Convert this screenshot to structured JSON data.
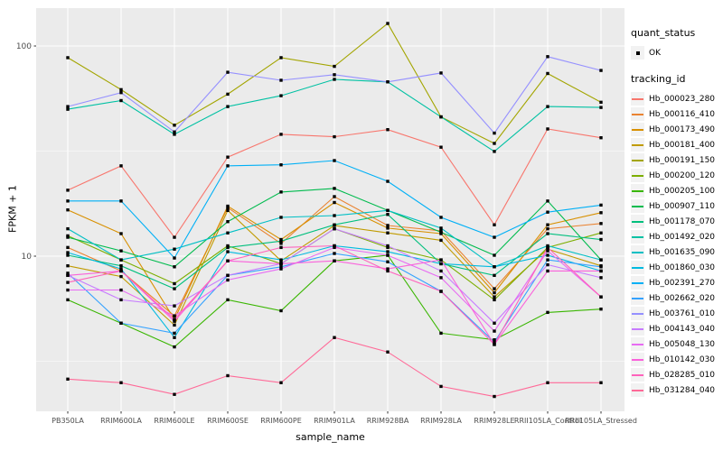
{
  "figure": {
    "background": "#FFFFFF",
    "panel_background": "#EBEBEB",
    "gridline_color": "#FFFFFF",
    "marker_color": "#000000",
    "tick_label_color": "#4D4D4D"
  },
  "legend": {
    "quant_status_title": "quant_status",
    "quant_status_items": [
      {
        "label": "OK",
        "symbol": "black-point"
      }
    ],
    "tracking_id_title": "tracking_id"
  },
  "chart_data": {
    "type": "line",
    "title": "",
    "xlabel": "sample_name",
    "ylabel": "FPKM + 1",
    "y_scale": "log10",
    "y_ticks": [
      10,
      100
    ],
    "y_minor_gridlines": [
      3.162,
      31.62
    ],
    "ylim": [
      1.85,
      155
    ],
    "grid": true,
    "legend_position": "right",
    "marker": "black-point",
    "categories": [
      "PB350LA",
      "RRIM600LA",
      "RRIM600LE",
      "RRIM600SE",
      "RRIM600PE",
      "RRIM901LA",
      "RRIM928BA",
      "RRIM928LA",
      "RRIM928LE",
      "RRII105LA_Control",
      "RRII105LA_Stressed"
    ],
    "series": [
      {
        "name": "Hb_000023_280",
        "color": "#F8766D",
        "values": [
          20.6,
          26.9,
          12.3,
          29.6,
          38.0,
          37.0,
          40.0,
          33.0,
          14.1,
          40.3,
          36.6
        ]
      },
      {
        "name": "Hb_000116_410",
        "color": "#EA8331",
        "values": [
          11.0,
          8.5,
          5.2,
          17.0,
          11.5,
          19.2,
          14.0,
          13.2,
          7.0,
          13.5,
          14.3
        ]
      },
      {
        "name": "Hb_000173_490",
        "color": "#D89000",
        "values": [
          16.6,
          12.8,
          5.0,
          17.3,
          12.0,
          18.0,
          13.6,
          12.8,
          6.7,
          14.1,
          16.1
        ]
      },
      {
        "name": "Hb_000181_400",
        "color": "#C09B00",
        "values": [
          9.0,
          8.0,
          4.7,
          16.5,
          9.5,
          14.0,
          12.9,
          11.9,
          6.4,
          10.8,
          9.0
        ]
      },
      {
        "name": "Hb_000191_150",
        "color": "#A3A500",
        "values": [
          88.0,
          62.0,
          42.0,
          59.0,
          88.0,
          80.0,
          128.0,
          46.0,
          34.4,
          74.0,
          54.0
        ]
      },
      {
        "name": "Hb_000200_120",
        "color": "#7CAE00",
        "values": [
          12.5,
          9.6,
          7.4,
          11.2,
          9.2,
          13.5,
          11.0,
          9.6,
          6.2,
          11.0,
          12.9
        ]
      },
      {
        "name": "Hb_000205_100",
        "color": "#39B600",
        "values": [
          6.2,
          4.8,
          3.7,
          6.2,
          5.5,
          9.5,
          10.1,
          4.3,
          4.0,
          5.4,
          5.6
        ]
      },
      {
        "name": "Hb_000907_110",
        "color": "#00BB4E",
        "values": [
          12.3,
          10.6,
          8.9,
          14.6,
          20.2,
          21.0,
          16.5,
          13.0,
          10.1,
          18.3,
          9.6
        ]
      },
      {
        "name": "Hb_001178_070",
        "color": "#00BF7D",
        "values": [
          10.1,
          9.0,
          7.0,
          11.0,
          11.8,
          14.1,
          15.8,
          9.2,
          8.1,
          12.8,
          12.0
        ]
      },
      {
        "name": "Hb_001492_020",
        "color": "#00C1A3",
        "values": [
          50.0,
          55.0,
          38.0,
          51.5,
          58.0,
          69.4,
          67.5,
          46.0,
          31.5,
          51.5,
          51.0
        ]
      },
      {
        "name": "Hb_001635_090",
        "color": "#00BFC4",
        "values": [
          13.5,
          9.6,
          10.8,
          12.9,
          15.3,
          15.6,
          16.5,
          13.6,
          8.9,
          11.2,
          9.6
        ]
      },
      {
        "name": "Hb_001860_030",
        "color": "#00BAE0",
        "values": [
          10.4,
          8.7,
          4.1,
          10.5,
          9.6,
          11.2,
          10.5,
          9.2,
          8.9,
          10.1,
          8.5
        ]
      },
      {
        "name": "Hb_002391_270",
        "color": "#00B0F6",
        "values": [
          18.3,
          18.3,
          9.8,
          26.9,
          27.2,
          28.5,
          22.7,
          15.3,
          12.3,
          16.2,
          17.5
        ]
      },
      {
        "name": "Hb_002662_020",
        "color": "#35A2FF",
        "values": [
          8.3,
          4.8,
          4.3,
          8.1,
          8.9,
          10.3,
          9.4,
          6.8,
          3.9,
          9.6,
          8.9
        ]
      },
      {
        "name": "Hb_003761_010",
        "color": "#9590FF",
        "values": [
          51.5,
          60.0,
          39.0,
          75.0,
          68.7,
          73.0,
          67.5,
          74.4,
          38.5,
          89.0,
          76.5
        ]
      },
      {
        "name": "Hb_004143_040",
        "color": "#C77CFF",
        "values": [
          8.1,
          6.2,
          5.8,
          8.1,
          9.2,
          13.5,
          11.2,
          8.5,
          4.8,
          9.1,
          7.9
        ]
      },
      {
        "name": "Hb_005048_130",
        "color": "#E76BF3",
        "values": [
          6.9,
          6.9,
          5.2,
          7.7,
          8.7,
          11.0,
          10.1,
          7.9,
          4.4,
          10.6,
          6.4
        ]
      },
      {
        "name": "Hb_010142_030",
        "color": "#FA62DB",
        "values": [
          8.1,
          8.5,
          4.9,
          9.5,
          9.2,
          9.5,
          8.7,
          9.6,
          3.8,
          8.5,
          8.5
        ]
      },
      {
        "name": "Hb_028285_010",
        "color": "#FF62BC",
        "values": [
          7.5,
          8.5,
          5.0,
          9.5,
          11.0,
          11.2,
          8.5,
          6.8,
          3.8,
          11.0,
          6.4
        ]
      },
      {
        "name": "Hb_031284_040",
        "color": "#FF6A98",
        "values": [
          2.6,
          2.5,
          2.2,
          2.7,
          2.5,
          4.1,
          3.5,
          2.4,
          2.15,
          2.5,
          2.5
        ]
      }
    ]
  }
}
